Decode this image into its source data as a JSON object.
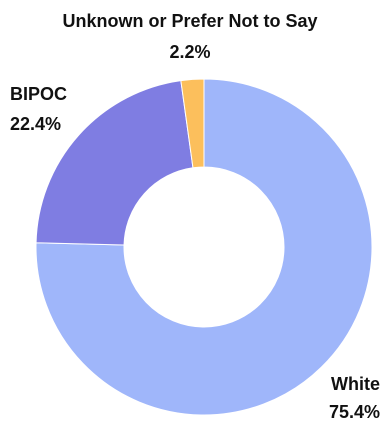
{
  "chart_data": {
    "type": "pie",
    "title": "",
    "donut": true,
    "slices": [
      {
        "label": "White",
        "value_label": "75.4%",
        "value": 75.4,
        "color": "#9fb6fa"
      },
      {
        "label": "BIPOC",
        "value_label": "22.4%",
        "value": 22.4,
        "color": "#7f7de2"
      },
      {
        "label": "Unknown or Prefer Not to Say",
        "value_label": "2.2%",
        "value": 2.2,
        "color": "#fcbf5c"
      }
    ]
  }
}
